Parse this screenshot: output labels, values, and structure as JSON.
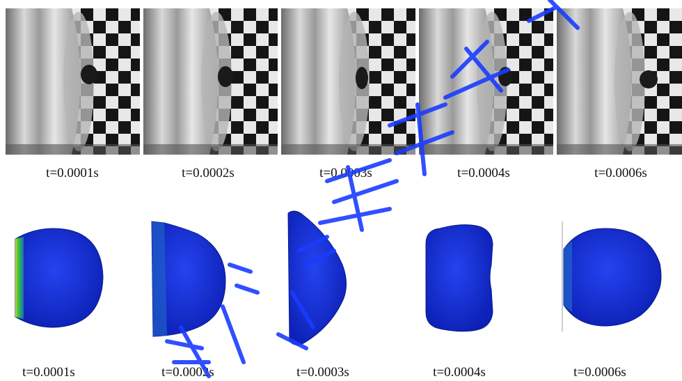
{
  "figure": {
    "top_row_captions": [
      "t=0.0001s",
      "t=0.0002s",
      "t=0.0003s",
      "t=0.0004s",
      "t=0.0006s"
    ],
    "bottom_row_captions": [
      "t=0.0001s",
      "t=0.0002s",
      "t=0.0003s",
      "t=0.0004s",
      "t=0.0006s"
    ]
  },
  "colors": {
    "sim_blue": "#1a2fd8",
    "sim_edge": "#0a1a8a",
    "contact_green": "#3cc83c",
    "watermark_blue": "#1a3cff"
  }
}
